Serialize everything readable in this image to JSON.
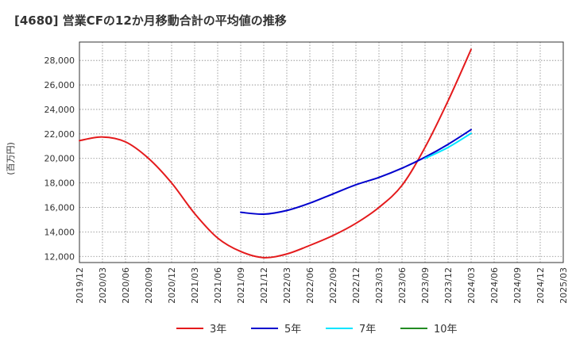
{
  "chart_data": {
    "type": "line",
    "title": "[4680]  営業CFの12か月移動合計の平均値の推移",
    "ylabel": "(百万円)",
    "xlabel": "",
    "ylim": [
      11500,
      29500
    ],
    "yticks": [
      12000,
      14000,
      16000,
      18000,
      20000,
      22000,
      24000,
      26000,
      28000
    ],
    "ytick_labels": [
      "12,000",
      "14,000",
      "16,000",
      "18,000",
      "20,000",
      "22,000",
      "24,000",
      "26,000",
      "28,000"
    ],
    "xticks": [
      "2019/12",
      "2020/03",
      "2020/06",
      "2020/09",
      "2020/12",
      "2021/03",
      "2021/06",
      "2021/09",
      "2021/12",
      "2022/03",
      "2022/06",
      "2022/09",
      "2022/12",
      "2023/03",
      "2023/06",
      "2023/09",
      "2023/12",
      "2024/03",
      "2024/06",
      "2024/09",
      "2024/12",
      "2025/03"
    ],
    "grid": true,
    "legend_position": "bottom",
    "series": [
      {
        "name": "3年",
        "color": "#e41a1c",
        "points": [
          [
            "2019/12",
            21450
          ],
          [
            "2020/03",
            21750
          ],
          [
            "2020/06",
            21350
          ],
          [
            "2020/09",
            20000
          ],
          [
            "2020/12",
            18000
          ],
          [
            "2021/03",
            15500
          ],
          [
            "2021/06",
            13500
          ],
          [
            "2021/09",
            12400
          ],
          [
            "2021/12",
            11900
          ],
          [
            "2022/03",
            12200
          ],
          [
            "2022/06",
            12900
          ],
          [
            "2022/09",
            13700
          ],
          [
            "2022/12",
            14700
          ],
          [
            "2023/03",
            16000
          ],
          [
            "2023/06",
            17800
          ],
          [
            "2023/09",
            20900
          ],
          [
            "2023/12",
            24700
          ],
          [
            "2024/03",
            28900
          ]
        ]
      },
      {
        "name": "5年",
        "color": "#0000cd",
        "points": [
          [
            "2021/09",
            15600
          ],
          [
            "2021/12",
            15450
          ],
          [
            "2022/03",
            15750
          ],
          [
            "2022/06",
            16350
          ],
          [
            "2022/09",
            17100
          ],
          [
            "2022/12",
            17850
          ],
          [
            "2023/03",
            18450
          ],
          [
            "2023/06",
            19200
          ],
          [
            "2023/09",
            20100
          ],
          [
            "2023/12",
            21150
          ],
          [
            "2024/03",
            22350
          ]
        ]
      },
      {
        "name": "7年",
        "color": "#00e5ff",
        "points": [
          [
            "2023/09",
            20000
          ],
          [
            "2023/12",
            20900
          ],
          [
            "2024/03",
            22050
          ]
        ]
      },
      {
        "name": "10年",
        "color": "#228b22",
        "points": []
      }
    ]
  }
}
